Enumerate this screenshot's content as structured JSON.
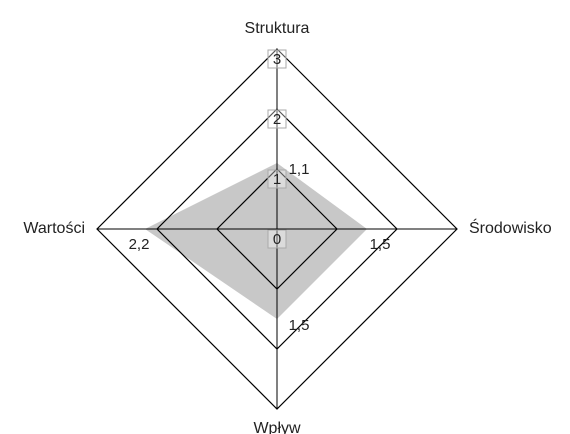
{
  "chart_data": {
    "type": "radar",
    "categories": [
      "Struktura",
      "Środowisko",
      "Wpływ",
      "Wartości"
    ],
    "values": [
      1.1,
      1.5,
      1.5,
      2.2
    ],
    "value_labels": [
      "1,1",
      "1,5",
      "1,5",
      "2,2"
    ],
    "color": "#c8c8c8",
    "ylim": [
      0,
      3
    ],
    "yticks": [
      0,
      1,
      2,
      3
    ]
  }
}
